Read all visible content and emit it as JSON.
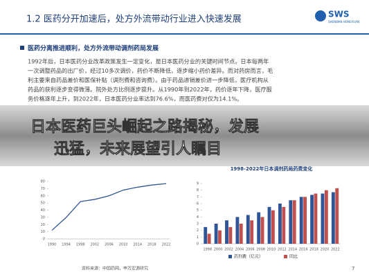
{
  "header": {
    "title": "1.2 医药分开加速后，处方外流带动行业进入快速发展",
    "logo": "SWS",
    "logo_sub": "SHENWAN HONGYUAN"
  },
  "section": {
    "heading": "医药分离推进顺利，处方外流带动调剂药局发展",
    "lines": [
      "1992年后，日本医药分业改革政策发生一定变化，是日本医药分业的关键时间节点。日本每两年",
      "一次调整药品的出厂价，经过10多次调价，药价不断降低，逐步缩小药价差异。而对药房而言，毛",
      "利主要来自药品差价和医保补贴（调剂费和咨询费）。由于药品进销差价进一步降低，医疗机构从",
      "药品的获利逐步变得微薄。院外处方比例逐步提升。从1990年到2022年，药价逐年下降，医疗服",
      "务价格逐年上升，到2022年，日本医药分业率达到76.6%，而医药费对仅为14.1%。"
    ]
  },
  "overlay": {
    "lines": [
      "日本医药巨头崛起之路揭秘，发展",
      "迅猛，未来展望引人瞩目"
    ]
  },
  "chart_data": [
    {
      "type": "line",
      "categories": [
        "1990",
        "1994",
        "1998",
        "2002",
        "2006",
        "2010",
        "2014",
        "2018",
        "2022"
      ],
      "values": [
        12,
        30,
        52,
        55,
        60,
        68,
        72,
        75,
        77
      ],
      "color": "#2f5597",
      "ylim": [
        0,
        80
      ],
      "yticks": [
        0,
        10,
        20,
        30,
        40,
        50,
        60,
        70,
        80
      ]
    },
    {
      "type": "bar",
      "title": "1998-2022年日本调剂药局药费变化",
      "categories": [
        "1998",
        "2000",
        "2002",
        "2004",
        "2006",
        "2008",
        "2010",
        "2012",
        "2014",
        "2016",
        "2018",
        "2020",
        "2022"
      ],
      "series": [
        {
          "name": "药剂费（亿元）",
          "color": "#2f5597",
          "values": [
            2.5,
            3,
            3.5,
            4,
            4.3,
            4.7,
            5.5,
            6,
            6.5,
            7,
            7.3,
            7.5,
            7.7
          ]
        },
        {
          "name": "同比",
          "color": "#c0504d",
          "values": [
            1.5,
            2,
            2.5,
            3,
            3.5,
            4,
            5,
            5.5,
            6.5,
            7,
            7.5,
            8,
            8.3
          ]
        }
      ],
      "ylim": [
        0,
        9
      ],
      "yticks": [
        0,
        1,
        2,
        3,
        4,
        5,
        6,
        7,
        8,
        9
      ]
    }
  ],
  "footer": {
    "source": "资料来源：中国药网，申万宏源研究",
    "page": "7"
  }
}
